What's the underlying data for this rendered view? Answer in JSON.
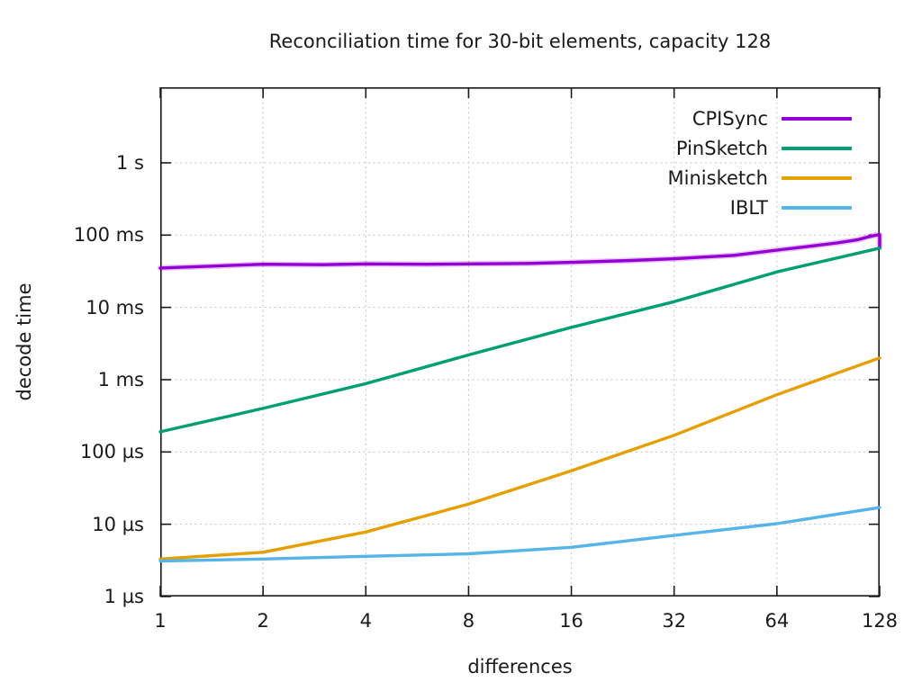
{
  "chart_data": {
    "type": "line",
    "title": "Reconciliation time for 30-bit elements, capacity 128",
    "xlabel": "differences",
    "ylabel": "decode time",
    "x_scale": "log2",
    "y_scale": "log10",
    "grid": true,
    "legend_position": "top-right-inside",
    "x_range": [
      1,
      128
    ],
    "y_range_us": [
      1,
      11000000
    ],
    "x_ticks": {
      "values": [
        1,
        2,
        4,
        8,
        16,
        32,
        64,
        128
      ],
      "labels": [
        "1",
        "2",
        "4",
        "8",
        "16",
        "32",
        "64",
        "128"
      ]
    },
    "y_ticks": {
      "values_us": [
        1,
        10,
        100,
        1000,
        10000,
        100000,
        1000000
      ],
      "labels": [
        "1 µs",
        "10 µs",
        "100 µs",
        "1 ms",
        "10 ms",
        "100 ms",
        "1 s"
      ]
    },
    "series": [
      {
        "name": "CPISync",
        "color": "#9400d3",
        "points_x_us": [
          [
            1,
            35000
          ],
          [
            2,
            39500
          ],
          [
            3,
            39000
          ],
          [
            4,
            40000
          ],
          [
            6,
            39500
          ],
          [
            8,
            40000
          ],
          [
            12,
            40500
          ],
          [
            16,
            42000
          ],
          [
            24,
            44500
          ],
          [
            32,
            47000
          ],
          [
            48,
            52500
          ],
          [
            64,
            62000
          ],
          [
            80,
            70000
          ],
          [
            96,
            78000
          ],
          [
            110,
            86000
          ],
          [
            118,
            94000
          ],
          [
            124,
            99000
          ],
          [
            128,
            101000
          ],
          [
            128,
            67000
          ]
        ]
      },
      {
        "name": "PinSketch",
        "color": "#009e73",
        "points_x_us": [
          [
            1,
            190
          ],
          [
            2,
            400
          ],
          [
            4,
            880
          ],
          [
            8,
            2200
          ],
          [
            16,
            5300
          ],
          [
            32,
            12000
          ],
          [
            64,
            31000
          ],
          [
            128,
            66000
          ]
        ]
      },
      {
        "name": "Minisketch",
        "color": "#e69f00",
        "points_x_us": [
          [
            1,
            3.3
          ],
          [
            2,
            4.1
          ],
          [
            4,
            7.8
          ],
          [
            8,
            19
          ],
          [
            16,
            55
          ],
          [
            32,
            170
          ],
          [
            64,
            620
          ],
          [
            128,
            2000
          ]
        ]
      },
      {
        "name": "IBLT",
        "color": "#56b4e9",
        "points_x_us": [
          [
            1,
            3.1
          ],
          [
            2,
            3.3
          ],
          [
            4,
            3.6
          ],
          [
            8,
            3.9
          ],
          [
            16,
            4.8
          ],
          [
            32,
            7.0
          ],
          [
            64,
            10.2
          ],
          [
            128,
            17
          ]
        ]
      }
    ],
    "colors": {
      "grid": "#c4c4c4",
      "border": "#1a1a1a",
      "text": "#1a1a1a",
      "background": "#ffffff"
    }
  }
}
